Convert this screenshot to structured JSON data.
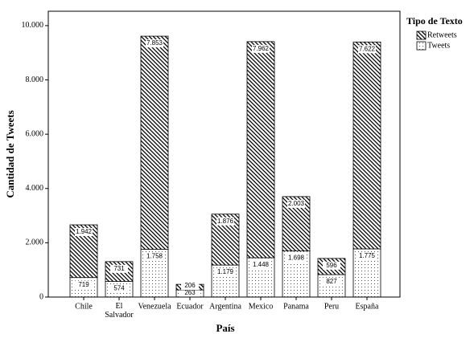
{
  "chart_data": {
    "type": "stacked_bar",
    "x_label": "País",
    "y_label": "Cantidad de Tweets",
    "legend_title": "Tipo de Texto",
    "legend": "right",
    "categories": [
      "Chile",
      "El Salvador",
      "Venezuela",
      "Ecuador",
      "Argentina",
      "Mexico",
      "Panama",
      "Peru",
      "España"
    ],
    "series": [
      {
        "name": "Tweets",
        "pattern": "dots",
        "values": [
          719,
          574,
          1758,
          263,
          1179,
          1448,
          1698,
          827,
          1775
        ],
        "value_labels": [
          "719",
          "574",
          "1.758",
          "263",
          "1.179",
          "1.448",
          "1.698",
          "827",
          "1.775"
        ]
      },
      {
        "name": "Retweets",
        "pattern": "hatch",
        "values": [
          1942,
          731,
          7853,
          206,
          1876,
          7962,
          2003,
          596,
          7622
        ],
        "value_labels": [
          "1.942",
          "731",
          "7.853",
          "206",
          "1.876",
          "7.962",
          "2.003",
          "596",
          "7.622"
        ]
      }
    ],
    "ylim": [
      0,
      10530
    ],
    "yticks": [
      0,
      {
        "value": 2000,
        "label": "2.000"
      },
      {
        "value": 4000,
        "label": "4.000"
      },
      {
        "value": 6000,
        "label": "6.000"
      },
      {
        "value": 8000,
        "label": "8.000"
      },
      {
        "value": 10000,
        "label": "10.000"
      }
    ]
  }
}
